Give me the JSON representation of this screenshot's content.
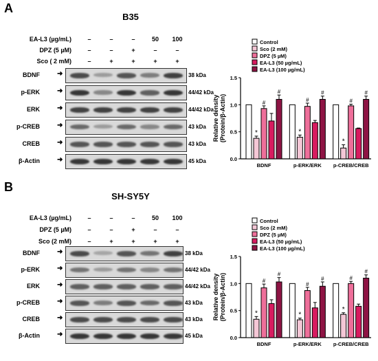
{
  "panels": [
    {
      "letter": "A",
      "cell_line": "B35",
      "treatments": [
        {
          "label": "EA-L3 (µg/mL)",
          "values": [
            "–",
            "–",
            "–",
            "50",
            "100"
          ]
        },
        {
          "label": "DPZ (5 µM)",
          "values": [
            "–",
            "–",
            "+",
            "–",
            "–"
          ]
        },
        {
          "label": "Sco ( 2 mM)",
          "values": [
            "–",
            "+",
            "+",
            "+",
            "+"
          ]
        }
      ],
      "blots": [
        {
          "name": "BDNF",
          "kda": "38 kDa",
          "intensity": [
            0.75,
            0.35,
            0.7,
            0.5,
            0.8
          ]
        },
        {
          "name": "p-ERK",
          "kda": "44/42 kDa",
          "intensity": [
            0.85,
            0.45,
            0.85,
            0.65,
            0.85
          ]
        },
        {
          "name": "ERK",
          "kda": "44/42 kDa",
          "intensity": [
            0.8,
            0.8,
            0.8,
            0.8,
            0.8
          ]
        },
        {
          "name": "p-CREB",
          "kda": "43 kDa",
          "intensity": [
            0.6,
            0.35,
            0.6,
            0.45,
            0.6
          ]
        },
        {
          "name": "CREB",
          "kda": "43 kDa",
          "intensity": [
            0.7,
            0.7,
            0.7,
            0.7,
            0.7
          ]
        },
        {
          "name": "β-Actin",
          "kda": "45 kDa",
          "intensity": [
            0.85,
            0.85,
            0.85,
            0.85,
            0.85
          ]
        }
      ]
    },
    {
      "letter": "B",
      "cell_line": "SH-SY5Y",
      "treatments": [
        {
          "label": "EA-L3 (µg/mL)",
          "values": [
            "–",
            "–",
            "–",
            "50",
            "100"
          ]
        },
        {
          "label": "DPZ (5 µM)",
          "values": [
            "–",
            "–",
            "+",
            "–",
            "–"
          ]
        },
        {
          "label": "Sco (2 mM)",
          "values": [
            "–",
            "+",
            "+",
            "+",
            "+"
          ]
        }
      ],
      "blots": [
        {
          "name": "BDNF",
          "kda": "38 kDa",
          "intensity": [
            0.75,
            0.3,
            0.7,
            0.55,
            0.8
          ]
        },
        {
          "name": "p-ERK",
          "kda": "44/42 kDa",
          "intensity": [
            0.55,
            0.35,
            0.55,
            0.45,
            0.55
          ]
        },
        {
          "name": "ERK",
          "kda": "44/42 kDa",
          "intensity": [
            0.65,
            0.65,
            0.65,
            0.65,
            0.65
          ]
        },
        {
          "name": "p-CREB",
          "kda": "43 kDa",
          "intensity": [
            0.7,
            0.5,
            0.7,
            0.6,
            0.7
          ]
        },
        {
          "name": "CREB",
          "kda": "43 kDa",
          "intensity": [
            0.75,
            0.75,
            0.75,
            0.75,
            0.75
          ]
        },
        {
          "name": "β-Actin",
          "kda": "45 kDa",
          "intensity": [
            0.85,
            0.85,
            0.85,
            0.85,
            0.85
          ]
        }
      ]
    }
  ],
  "chart_data": [
    {
      "type": "bar",
      "categories": [
        "BDNF",
        "p-ERK/ERK",
        "p-CREB/CREB"
      ],
      "ylabel": "Relative density\n(Protein/β-Actin)",
      "ylim": [
        0,
        1.5
      ],
      "yticks": [
        "0.0",
        "0.5",
        "1.0",
        "1.5"
      ],
      "series": [
        {
          "name": "Control",
          "values": [
            1.0,
            1.0,
            1.0
          ],
          "err": [
            0,
            0,
            0
          ],
          "marks": [
            "",
            "",
            ""
          ]
        },
        {
          "name": "Sco (2 mM)",
          "values": [
            0.38,
            0.4,
            0.2
          ],
          "err": [
            0.04,
            0.04,
            0.06
          ],
          "marks": [
            "*",
            "*",
            "*"
          ]
        },
        {
          "name": "DPZ (5 µM)",
          "values": [
            0.93,
            0.97,
            0.98
          ],
          "err": [
            0.05,
            0.06,
            0.03
          ],
          "marks": [
            "#",
            "#",
            "#"
          ]
        },
        {
          "name": "EA-L3 (50 µg/mL)",
          "values": [
            0.7,
            0.67,
            0.56
          ],
          "err": [
            0.14,
            0.04,
            0.01
          ],
          "marks": [
            "",
            "",
            ""
          ]
        },
        {
          "name": "EA-L3 (100 µg/mL)",
          "values": [
            1.1,
            1.1,
            1.1
          ],
          "err": [
            0.08,
            0.06,
            0.06
          ],
          "marks": [
            "#",
            "#",
            "#"
          ]
        }
      ],
      "colors": [
        "#ffffff",
        "#f4c7d6",
        "#ee6f9a",
        "#d81b60",
        "#8e1444"
      ],
      "legend": "top"
    },
    {
      "type": "bar",
      "categories": [
        "BDNF",
        "p-ERK/ERK",
        "p-CREB/CREB"
      ],
      "ylabel": "Relative density\n(Protein/β-Actin)",
      "ylim": [
        0,
        1.5
      ],
      "yticks": [
        "0.0",
        "0.5",
        "1.0",
        "1.5"
      ],
      "series": [
        {
          "name": "Control",
          "values": [
            1.0,
            1.0,
            1.0
          ],
          "err": [
            0,
            0,
            0
          ],
          "marks": [
            "",
            "",
            ""
          ]
        },
        {
          "name": "Sco (2 mM)",
          "values": [
            0.34,
            0.33,
            0.43
          ],
          "err": [
            0.05,
            0.03,
            0.03
          ],
          "marks": [
            "*",
            "*",
            "*"
          ]
        },
        {
          "name": "DPZ (5 µM)",
          "values": [
            0.92,
            0.87,
            1.0
          ],
          "err": [
            0.07,
            0.06,
            0.04
          ],
          "marks": [
            "#",
            "#",
            "#"
          ]
        },
        {
          "name": "EA-L3 (50 µg/mL)",
          "values": [
            0.63,
            0.55,
            0.58
          ],
          "err": [
            0.07,
            0.1,
            0.04
          ],
          "marks": [
            "",
            "",
            ""
          ]
        },
        {
          "name": "EA-L3 (100 µg/mL)",
          "values": [
            1.03,
            0.95,
            1.1
          ],
          "err": [
            0.08,
            0.08,
            0.06
          ],
          "marks": [
            "#",
            "#",
            "#"
          ]
        }
      ],
      "colors": [
        "#ffffff",
        "#f4c7d6",
        "#ee6f9a",
        "#d81b60",
        "#8e1444"
      ],
      "legend": "top"
    }
  ]
}
